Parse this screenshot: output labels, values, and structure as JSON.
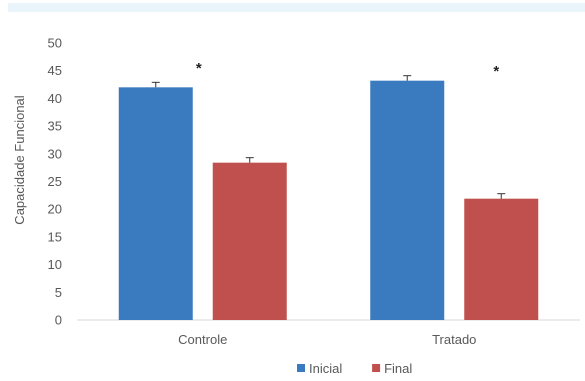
{
  "chart_data": {
    "type": "bar",
    "categories": [
      "Controle",
      "Tratado"
    ],
    "series": [
      {
        "name": "Inicial",
        "values": [
          42,
          43.2
        ],
        "errors": [
          0.9,
          0.9
        ],
        "color": "#3a7bbf"
      },
      {
        "name": "Final",
        "values": [
          28.4,
          21.9
        ],
        "errors": [
          0.9,
          0.9
        ],
        "color": "#c0504d"
      }
    ],
    "ylabel": "Capacidade Funcional",
    "xlabel": "",
    "ylim": [
      0,
      50
    ],
    "yticks": [
      0,
      5,
      10,
      15,
      20,
      25,
      30,
      35,
      40,
      45,
      50
    ],
    "annotations": [
      "*",
      "*"
    ],
    "grid": false,
    "legend_position": "bottom"
  }
}
